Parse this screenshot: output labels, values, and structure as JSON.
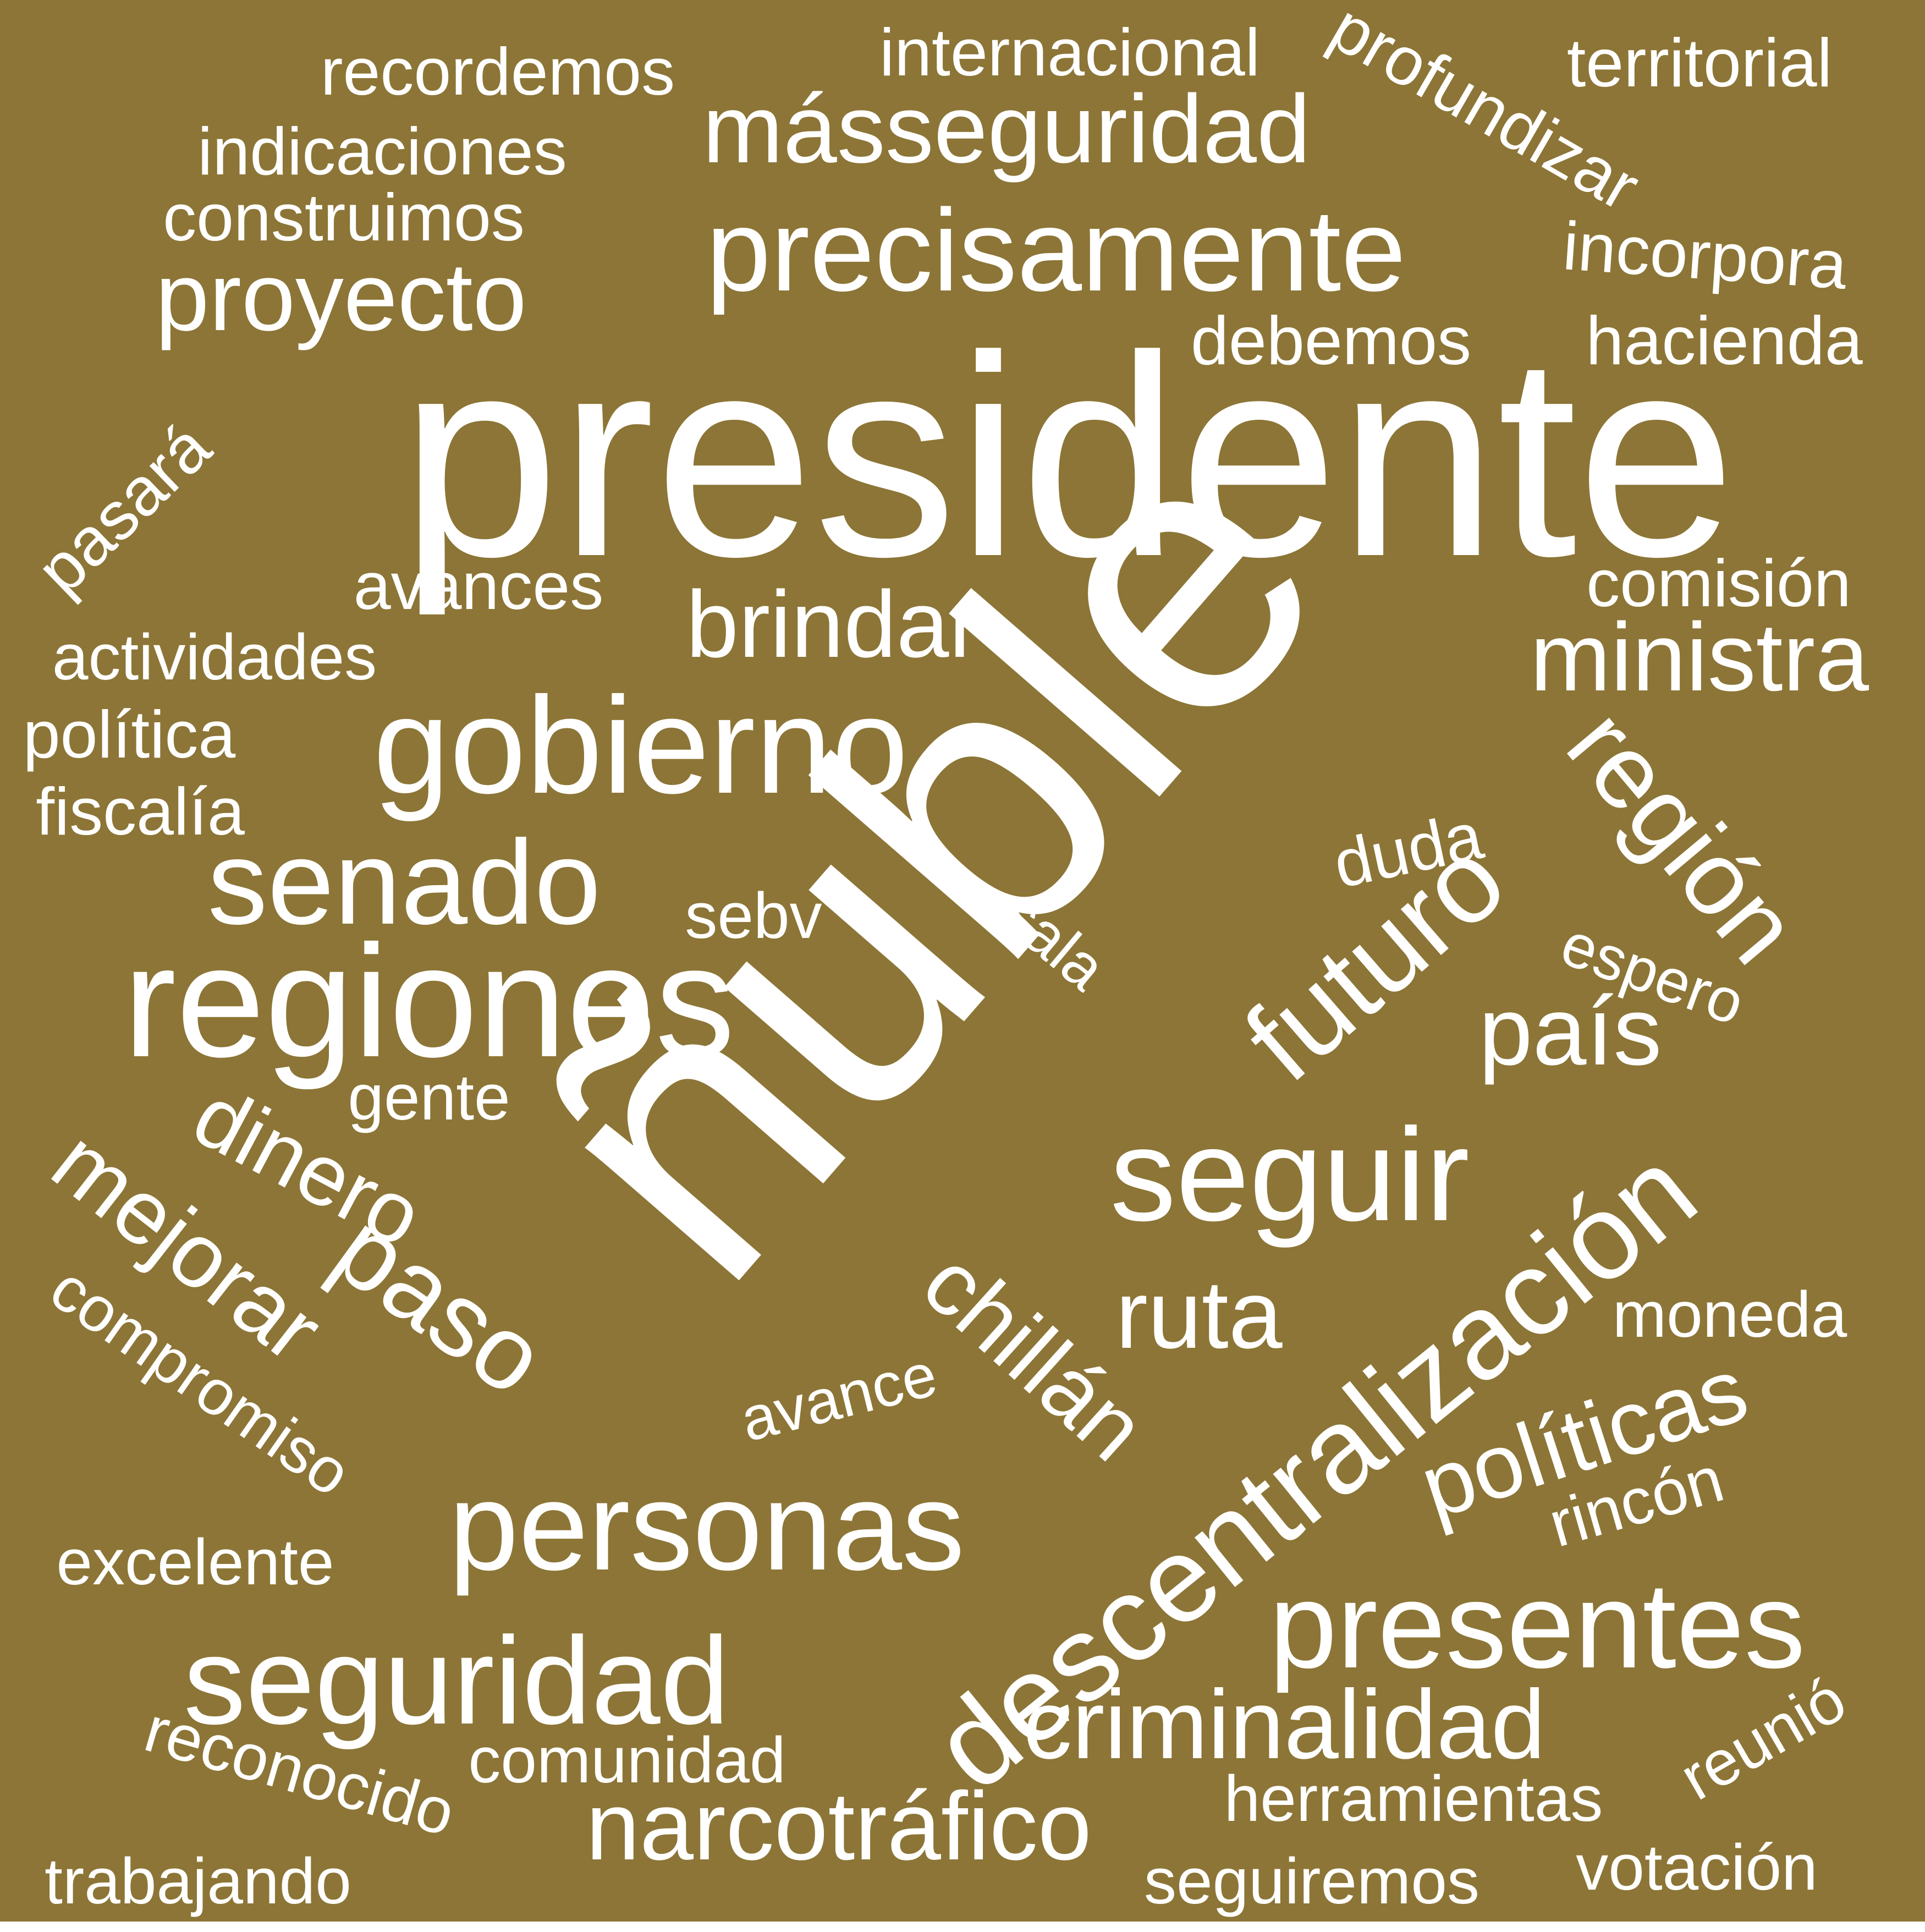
{
  "background_color": "#8c7536",
  "text_color": "#ffffff",
  "words": [
    {
      "key": "presidente",
      "text": "presidente"
    },
    {
      "key": "nuble",
      "text": "ñuble"
    },
    {
      "key": "regiones",
      "text": "regiones"
    },
    {
      "key": "gobierno",
      "text": "gobierno"
    },
    {
      "key": "precisamente",
      "text": "precisamente"
    },
    {
      "key": "masseguridad",
      "text": "másseguridad"
    },
    {
      "key": "senado",
      "text": "senado"
    },
    {
      "key": "seguir",
      "text": "seguir"
    },
    {
      "key": "descentralizacion",
      "text": "descentralización"
    },
    {
      "key": "personas",
      "text": "personas"
    },
    {
      "key": "seguridad",
      "text": "seguridad"
    },
    {
      "key": "presentes",
      "text": "presentes"
    },
    {
      "key": "narcotrafico",
      "text": "narcotráfico"
    },
    {
      "key": "criminalidad",
      "text": "criminalidad"
    },
    {
      "key": "region",
      "text": "región"
    },
    {
      "key": "futuro",
      "text": "futuro"
    },
    {
      "key": "proyecto",
      "text": "proyecto"
    },
    {
      "key": "ministra",
      "text": "ministra"
    },
    {
      "key": "brindar",
      "text": "brindar"
    },
    {
      "key": "mejorar",
      "text": "mejorar"
    },
    {
      "key": "paso",
      "text": "paso"
    },
    {
      "key": "dinero",
      "text": "dinero"
    },
    {
      "key": "chillan",
      "text": "chillán"
    },
    {
      "key": "ruta",
      "text": "ruta"
    },
    {
      "key": "pais",
      "text": "país"
    },
    {
      "key": "politicas",
      "text": "políticas"
    },
    {
      "key": "internacional",
      "text": "internacional"
    },
    {
      "key": "profundizar",
      "text": "profundizar"
    },
    {
      "key": "territorial",
      "text": "territorial"
    },
    {
      "key": "recordemos",
      "text": "recordemos"
    },
    {
      "key": "indicaciones",
      "text": "indicaciones"
    },
    {
      "key": "construimos",
      "text": "construimos"
    },
    {
      "key": "incorpora",
      "text": "incorpora"
    },
    {
      "key": "debemos",
      "text": "debemos"
    },
    {
      "key": "hacienda",
      "text": "hacienda"
    },
    {
      "key": "pasara",
      "text": "pasará"
    },
    {
      "key": "avances",
      "text": "avances"
    },
    {
      "key": "comision",
      "text": "comisión"
    },
    {
      "key": "actividades",
      "text": "actividades"
    },
    {
      "key": "politica",
      "text": "política"
    },
    {
      "key": "fiscalia",
      "text": "fiscalía"
    },
    {
      "key": "duda",
      "text": "duda"
    },
    {
      "key": "sebv",
      "text": "sebv"
    },
    {
      "key": "sala",
      "text": "sala"
    },
    {
      "key": "espero",
      "text": "espero"
    },
    {
      "key": "gente",
      "text": "gente"
    },
    {
      "key": "compromiso",
      "text": "compromiso"
    },
    {
      "key": "avance",
      "text": "avance"
    },
    {
      "key": "moneda",
      "text": "moneda"
    },
    {
      "key": "rincon",
      "text": "rincón"
    },
    {
      "key": "excelente",
      "text": "excelente"
    },
    {
      "key": "reconocido",
      "text": "reconocido"
    },
    {
      "key": "comunidad",
      "text": "comunidad"
    },
    {
      "key": "herramientas",
      "text": "herramientas"
    },
    {
      "key": "reunio",
      "text": "reunió"
    },
    {
      "key": "trabajando",
      "text": "trabajando"
    },
    {
      "key": "seguiremos",
      "text": "seguiremos"
    },
    {
      "key": "votacion",
      "text": "votación"
    }
  ]
}
